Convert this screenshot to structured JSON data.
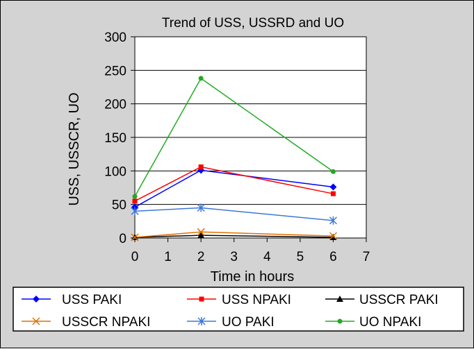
{
  "chart_data": {
    "type": "line",
    "title": "Trend of USS, USSRD and UO",
    "xlabel": "Time in hours",
    "ylabel": "USS, USSCR, UO",
    "xlim": [
      0,
      7
    ],
    "ylim": [
      0,
      300
    ],
    "xticks": [
      "0",
      "1",
      "2",
      "3",
      "4",
      "5",
      "6",
      "7"
    ],
    "yticks": [
      "0",
      "50",
      "100",
      "150",
      "200",
      "250",
      "300"
    ],
    "grid": "horizontal",
    "legend_position": "bottom",
    "x": [
      0,
      2,
      6
    ],
    "series": [
      {
        "name": "USS PAKI",
        "values": [
          46,
          101,
          76
        ],
        "color": "#0000ff",
        "marker": "diamond"
      },
      {
        "name": "USS NPAKI",
        "values": [
          55,
          106,
          66
        ],
        "color": "#ff0000",
        "marker": "square"
      },
      {
        "name": "USSCR PAKI",
        "values": [
          1,
          4,
          1
        ],
        "color": "#000000",
        "marker": "triangle"
      },
      {
        "name": "USSCR NPAKI",
        "values": [
          1,
          9,
          3
        ],
        "color": "#e07000",
        "marker": "x"
      },
      {
        "name": "UO PAKI",
        "values": [
          40,
          45,
          26
        ],
        "color": "#3c78d8",
        "marker": "asterisk"
      },
      {
        "name": "UO NPAKI",
        "values": [
          62,
          238,
          99
        ],
        "color": "#22aa22",
        "marker": "circle"
      }
    ]
  }
}
